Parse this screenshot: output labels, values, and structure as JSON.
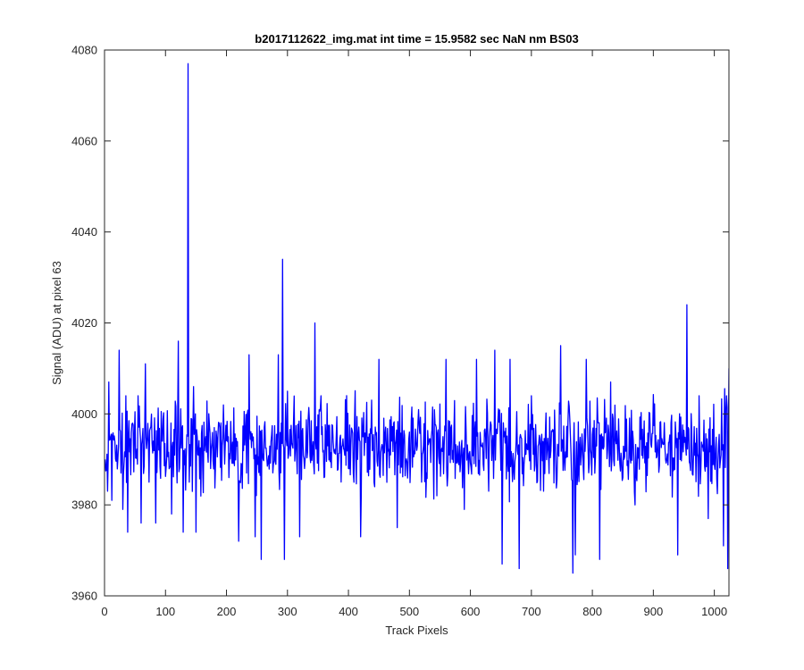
{
  "chart_data": {
    "type": "line",
    "title": "b2017112622_img.mat int time = 15.9582 sec  NaN nm BS03",
    "xlabel": "Track Pixels",
    "ylabel": "Signal (ADU) at pixel 63",
    "xlim": [
      0,
      1024
    ],
    "ylim": [
      3960,
      4080
    ],
    "xticks": [
      0,
      100,
      200,
      300,
      400,
      500,
      600,
      700,
      800,
      900,
      1000
    ],
    "yticks": [
      3960,
      3980,
      4000,
      4020,
      4040,
      4060,
      4080
    ],
    "grid": false,
    "legend": "none",
    "series_color": "#0000ff",
    "series": [
      {
        "x_start": 1,
        "x_step": 1,
        "noise_mean": 3993,
        "noise_amplitude_approx": 9,
        "anchor_points": [
          [
            1,
            3990
          ],
          [
            5,
            3983
          ],
          [
            7,
            4007
          ],
          [
            12,
            3981
          ],
          [
            24,
            4014
          ],
          [
            30,
            3979
          ],
          [
            35,
            4004
          ],
          [
            38,
            3974
          ],
          [
            55,
            4004
          ],
          [
            60,
            3976
          ],
          [
            67,
            4011
          ],
          [
            73,
            3985
          ],
          [
            84,
            3976
          ],
          [
            95,
            3994
          ],
          [
            110,
            3978
          ],
          [
            121,
            4016
          ],
          [
            129,
            3974
          ],
          [
            134,
            3990
          ],
          [
            137,
            4077
          ],
          [
            139,
            3985
          ],
          [
            146,
            4006
          ],
          [
            150,
            3974
          ],
          [
            180,
            3997
          ],
          [
            204,
            3986
          ],
          [
            220,
            3972
          ],
          [
            233,
            3987
          ],
          [
            237,
            4013
          ],
          [
            247,
            3973
          ],
          [
            257,
            3968
          ],
          [
            277,
            3989
          ],
          [
            285,
            4013
          ],
          [
            290,
            3998
          ],
          [
            292,
            4034
          ],
          [
            295,
            3968
          ],
          [
            300,
            4005
          ],
          [
            320,
            3973
          ],
          [
            345,
            4020
          ],
          [
            360,
            3986
          ],
          [
            380,
            3995
          ],
          [
            400,
            3988
          ],
          [
            420,
            3973
          ],
          [
            450,
            4012
          ],
          [
            480,
            3975
          ],
          [
            500,
            3996
          ],
          [
            520,
            3985
          ],
          [
            545,
            3982
          ],
          [
            560,
            4012
          ],
          [
            590,
            3979
          ],
          [
            610,
            4012
          ],
          [
            630,
            3983
          ],
          [
            640,
            4014
          ],
          [
            652,
            3967
          ],
          [
            665,
            4012
          ],
          [
            680,
            3966
          ],
          [
            700,
            4004
          ],
          [
            720,
            3983
          ],
          [
            748,
            4015
          ],
          [
            768,
            3965
          ],
          [
            772,
            3969
          ],
          [
            790,
            4012
          ],
          [
            812,
            3968
          ],
          [
            830,
            4007
          ],
          [
            850,
            3986
          ],
          [
            870,
            3980
          ],
          [
            895,
            3996
          ],
          [
            920,
            3990
          ],
          [
            940,
            3969
          ],
          [
            955,
            4024
          ],
          [
            960,
            3989
          ],
          [
            975,
            4004
          ],
          [
            990,
            3977
          ],
          [
            1000,
            3989
          ],
          [
            1015,
            3971
          ],
          [
            1020,
            4004
          ],
          [
            1022,
            3966
          ],
          [
            1024,
            4010
          ]
        ]
      }
    ]
  }
}
